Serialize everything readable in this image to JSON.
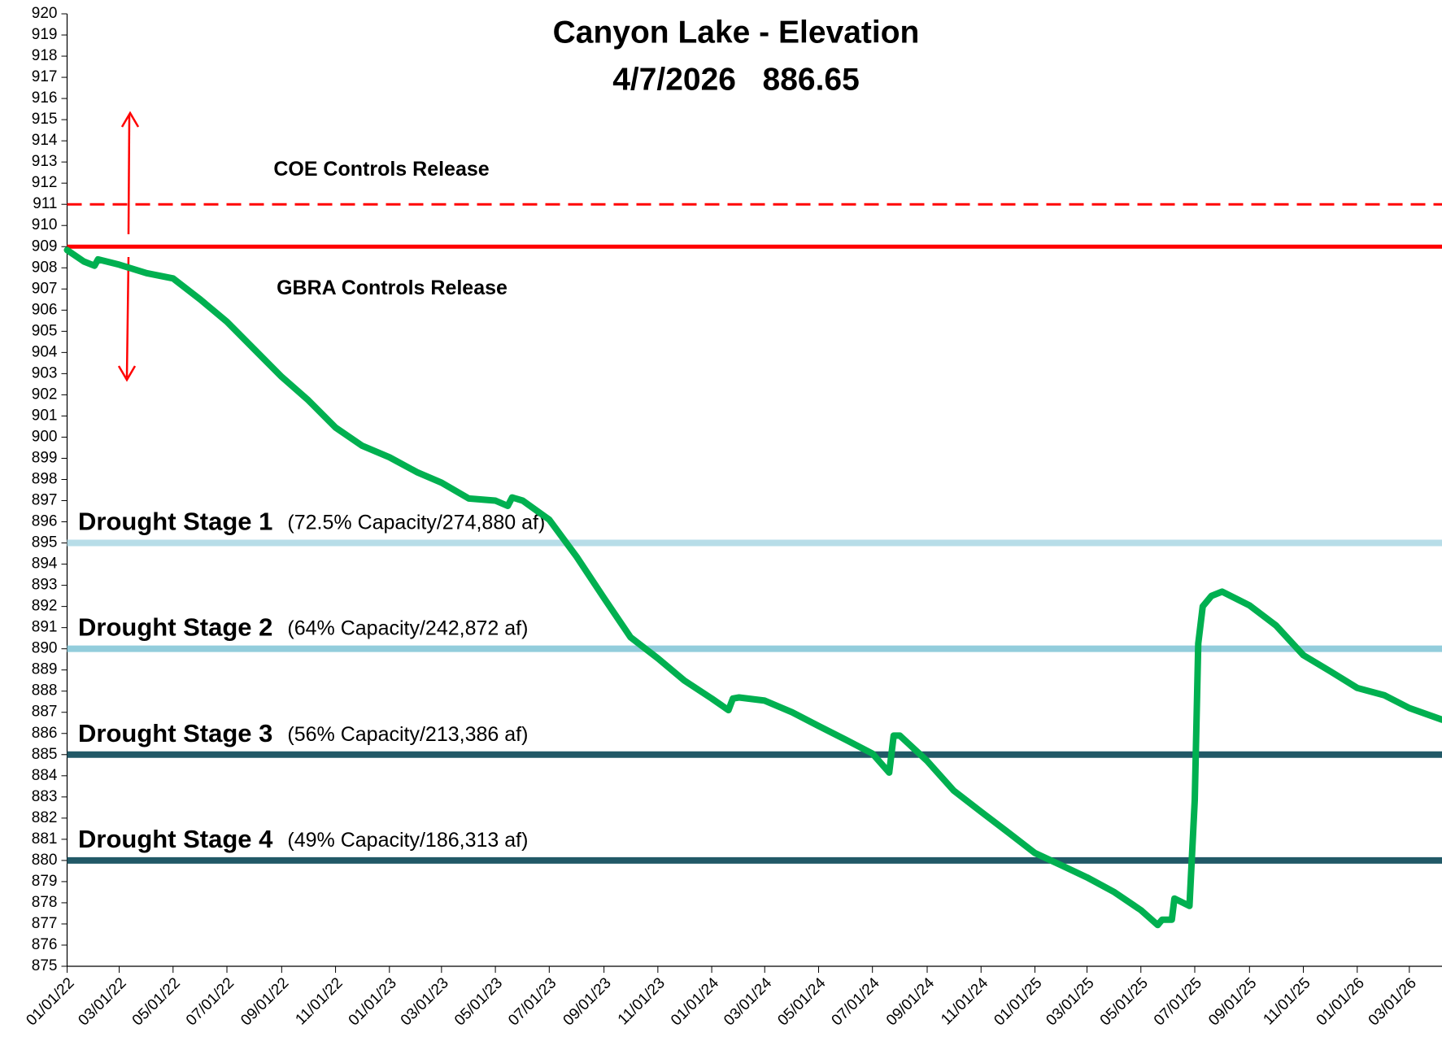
{
  "chart_data": {
    "type": "line",
    "title": "Canyon Lake - Elevation",
    "subtitle": "4/7/2026   886.65",
    "ylim": [
      875,
      920
    ],
    "yticks": [
      875,
      876,
      877,
      878,
      879,
      880,
      881,
      882,
      883,
      884,
      885,
      886,
      887,
      888,
      889,
      890,
      891,
      892,
      893,
      894,
      895,
      896,
      897,
      898,
      899,
      900,
      901,
      902,
      903,
      904,
      905,
      906,
      907,
      908,
      909,
      910,
      911,
      912,
      913,
      914,
      915,
      916,
      917,
      918,
      919,
      920
    ],
    "xlim": [
      "2022-01-01",
      "2026-04-07"
    ],
    "xticks": [
      {
        "value": "2022-01-01",
        "label": "01/01/22"
      },
      {
        "value": "2022-03-01",
        "label": "03/01/22"
      },
      {
        "value": "2022-05-01",
        "label": "05/01/22"
      },
      {
        "value": "2022-07-01",
        "label": "07/01/22"
      },
      {
        "value": "2022-09-01",
        "label": "09/01/22"
      },
      {
        "value": "2022-11-01",
        "label": "11/01/22"
      },
      {
        "value": "2023-01-01",
        "label": "01/01/23"
      },
      {
        "value": "2023-03-01",
        "label": "03/01/23"
      },
      {
        "value": "2023-05-01",
        "label": "05/01/23"
      },
      {
        "value": "2023-07-01",
        "label": "07/01/23"
      },
      {
        "value": "2023-09-01",
        "label": "09/01/23"
      },
      {
        "value": "2023-11-01",
        "label": "11/01/23"
      },
      {
        "value": "2024-01-01",
        "label": "01/01/24"
      },
      {
        "value": "2024-03-01",
        "label": "03/01/24"
      },
      {
        "value": "2024-05-01",
        "label": "05/01/24"
      },
      {
        "value": "2024-07-01",
        "label": "07/01/24"
      },
      {
        "value": "2024-09-01",
        "label": "09/01/24"
      },
      {
        "value": "2024-11-01",
        "label": "11/01/24"
      },
      {
        "value": "2025-01-01",
        "label": "01/01/25"
      },
      {
        "value": "2025-03-01",
        "label": "03/01/25"
      },
      {
        "value": "2025-05-01",
        "label": "05/01/25"
      },
      {
        "value": "2025-07-01",
        "label": "07/01/25"
      },
      {
        "value": "2025-09-01",
        "label": "09/01/25"
      },
      {
        "value": "2025-11-01",
        "label": "11/01/25"
      },
      {
        "value": "2026-01-01",
        "label": "01/01/26"
      },
      {
        "value": "2026-03-01",
        "label": "03/01/26"
      }
    ],
    "series": [
      {
        "color": "#00b050",
        "x": [
          "2022-01-01",
          "2022-01-20",
          "2022-02-01",
          "2022-02-05",
          "2022-03-01",
          "2022-04-01",
          "2022-05-01",
          "2022-06-01",
          "2022-07-01",
          "2022-08-01",
          "2022-09-01",
          "2022-10-01",
          "2022-11-01",
          "2022-12-01",
          "2023-01-01",
          "2023-02-01",
          "2023-03-01",
          "2023-04-01",
          "2023-05-01",
          "2023-05-15",
          "2023-05-20",
          "2023-06-01",
          "2023-07-01",
          "2023-08-01",
          "2023-09-01",
          "2023-10-01",
          "2023-11-01",
          "2023-12-01",
          "2024-01-01",
          "2024-01-20",
          "2024-01-25",
          "2024-02-01",
          "2024-03-01",
          "2024-04-01",
          "2024-05-01",
          "2024-06-01",
          "2024-07-01",
          "2024-07-20",
          "2024-07-25",
          "2024-08-01",
          "2024-09-01",
          "2024-10-01",
          "2024-11-01",
          "2024-12-01",
          "2025-01-01",
          "2025-02-01",
          "2025-03-01",
          "2025-04-01",
          "2025-05-01",
          "2025-05-20",
          "2025-05-25",
          "2025-06-05",
          "2025-06-08",
          "2025-06-25",
          "2025-07-01",
          "2025-07-05",
          "2025-07-10",
          "2025-07-20",
          "2025-08-01",
          "2025-09-01",
          "2025-10-01",
          "2025-11-01",
          "2025-12-01",
          "2026-01-01",
          "2026-02-01",
          "2026-03-01",
          "2026-04-07"
        ],
        "values": [
          908.84,
          908.3,
          908.1,
          908.4,
          908.15,
          907.75,
          907.5,
          906.5,
          905.45,
          904.15,
          902.85,
          901.75,
          900.45,
          899.6,
          899.05,
          898.35,
          897.85,
          897.1,
          897.0,
          896.75,
          897.15,
          897.0,
          896.1,
          894.35,
          892.4,
          890.55,
          889.55,
          888.5,
          887.65,
          887.1,
          887.65,
          887.7,
          887.55,
          887.0,
          886.35,
          885.7,
          885.05,
          884.15,
          885.9,
          885.9,
          884.7,
          883.3,
          882.3,
          881.35,
          880.35,
          879.75,
          879.2,
          878.5,
          877.65,
          876.95,
          877.2,
          877.2,
          878.2,
          877.85,
          882.85,
          890.25,
          892.0,
          892.5,
          892.7,
          892.05,
          891.1,
          889.7,
          888.95,
          888.15,
          887.8,
          887.2,
          886.65
        ]
      }
    ],
    "reference_lines": [
      {
        "value": 911,
        "color": "#ff0000",
        "dashed": true,
        "name": "COE Controls Release"
      },
      {
        "value": 909,
        "color": "#ff0000",
        "dashed": false,
        "name": "GBRA Controls Release"
      },
      {
        "value": 895,
        "color": "#b7dde8",
        "dashed": false,
        "name": "Drought Stage 1",
        "note": "(72.5% Capacity/274,880 af)"
      },
      {
        "value": 890,
        "color": "#92cddc",
        "dashed": false,
        "name": "Drought Stage 2",
        "note": "(64% Capacity/242,872 af)"
      },
      {
        "value": 885,
        "color": "#215967",
        "dashed": false,
        "name": "Drought Stage 3",
        "note": "(56% Capacity/213,386 af)"
      },
      {
        "value": 880,
        "color": "#215967",
        "dashed": false,
        "name": "Drought Stage 4",
        "note": "(49% Capacity/186,313 af)"
      }
    ]
  }
}
